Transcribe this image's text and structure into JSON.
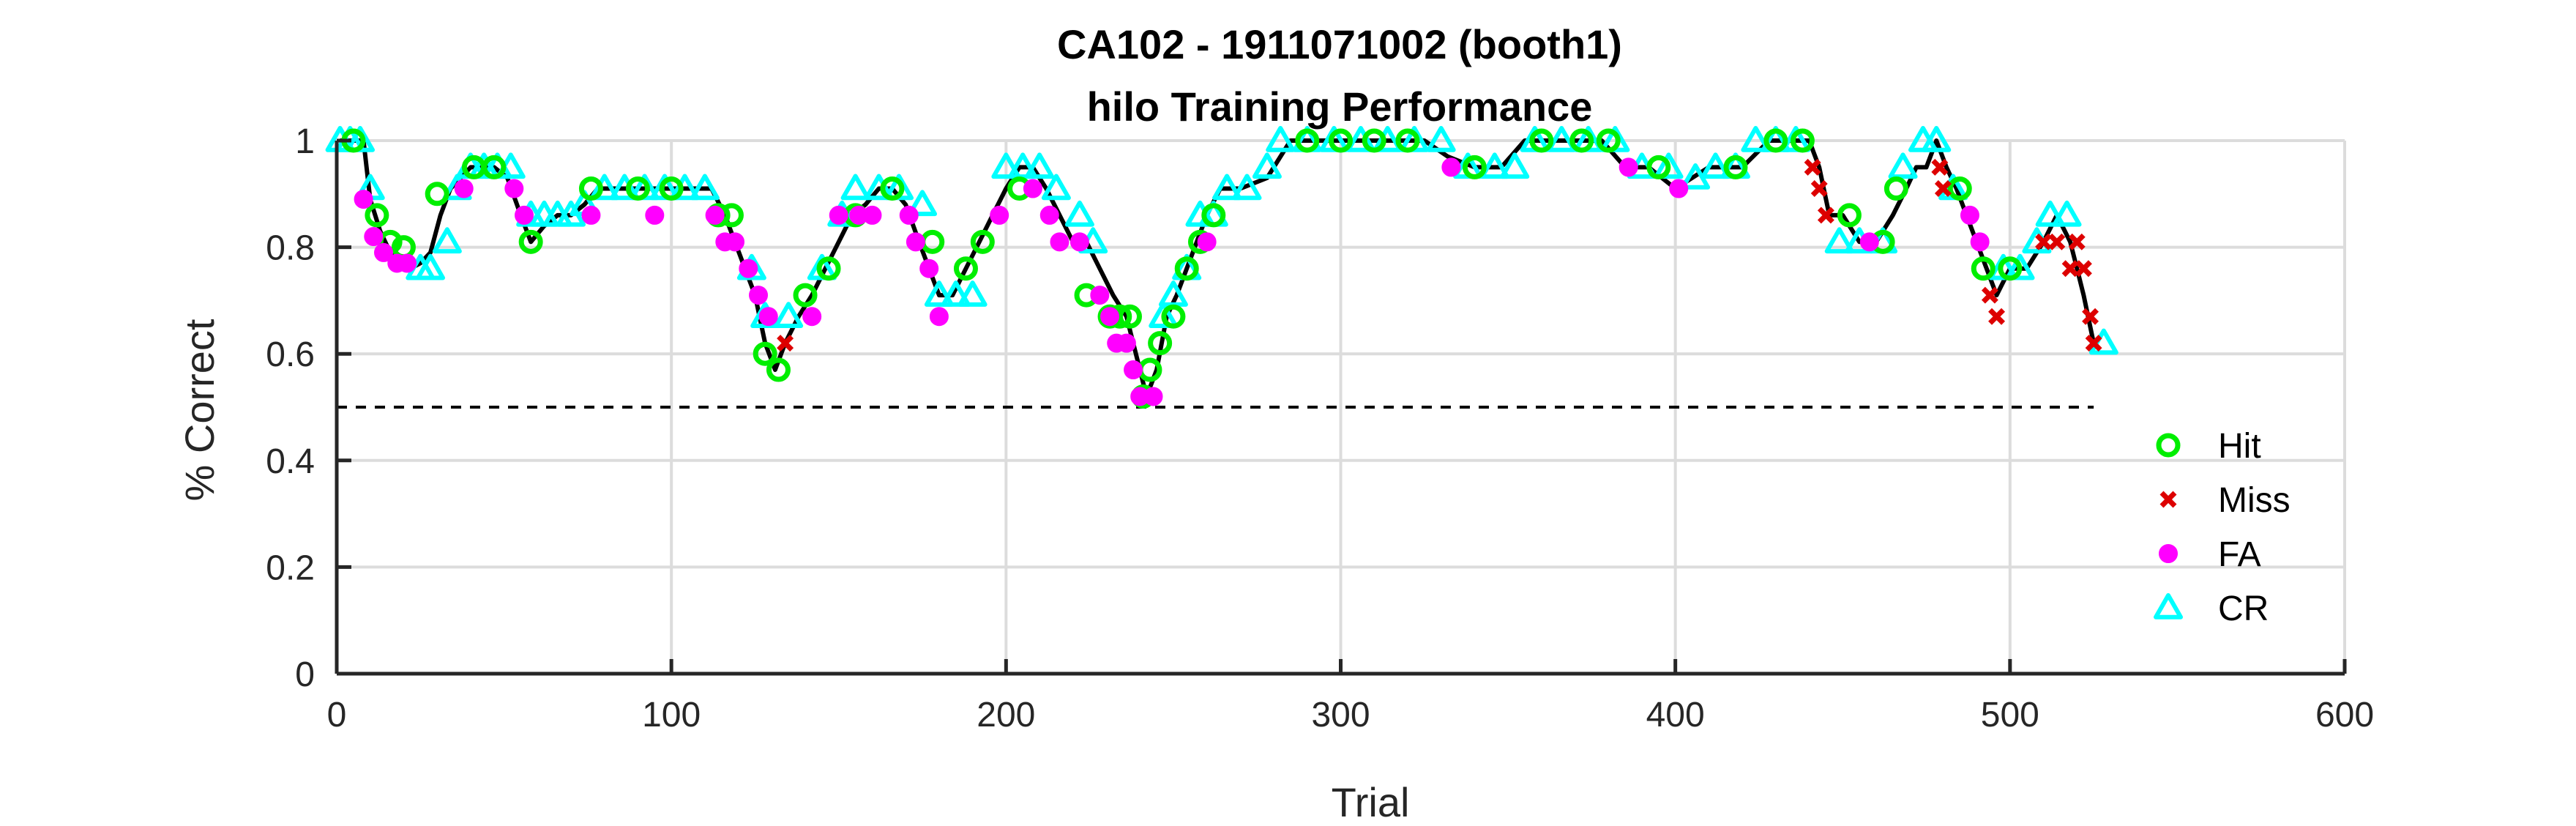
{
  "chart_data": {
    "type": "line",
    "title": "CA102 - 1911071002 (booth1)",
    "subtitle": "hilo Training Performance",
    "xlabel": "Trial",
    "ylabel": "% Correct",
    "xlim": [
      0,
      600
    ],
    "ylim": [
      0,
      1
    ],
    "xticks": [
      "0",
      "100",
      "200",
      "300",
      "400",
      "500",
      "600"
    ],
    "yticks": [
      "0",
      "0.2",
      "0.4",
      "0.6",
      "0.8",
      "1"
    ],
    "grid": true,
    "legend_position": "right",
    "chance_level": 0.5,
    "chance_x": [
      0,
      525
    ],
    "series_colors": {
      "Hit": "#00ee00",
      "Miss": "#dd0000",
      "FA": "#ff00ff",
      "CR": "#00ffff",
      "line": "#000000"
    },
    "performance": {
      "x": [
        1,
        8,
        10,
        13,
        16,
        19,
        22,
        25,
        28,
        31,
        34,
        37,
        40,
        43,
        47,
        51,
        55,
        58,
        62,
        66,
        70,
        74,
        78,
        84,
        90,
        96,
        102,
        108,
        112,
        116,
        119,
        122,
        125,
        128,
        131,
        134,
        138,
        142,
        146,
        150,
        154,
        158,
        162,
        166,
        170,
        174,
        177,
        180,
        184,
        188,
        192,
        196,
        200,
        204,
        208,
        212,
        216,
        220,
        224,
        228,
        232,
        236,
        240,
        242,
        245,
        248,
        251,
        254,
        257,
        260,
        264,
        270,
        278,
        285,
        295,
        305,
        315,
        325,
        332,
        340,
        348,
        355,
        362,
        370,
        378,
        385,
        392,
        400,
        405,
        410,
        415,
        420,
        428,
        435,
        440,
        443,
        446,
        450,
        455,
        460,
        465,
        469,
        472,
        475,
        478,
        481,
        484,
        487,
        490,
        493,
        496,
        500,
        505,
        510,
        514,
        518,
        520,
        522,
        525
      ],
      "y": [
        1.0,
        1.0,
        0.89,
        0.83,
        0.79,
        0.77,
        0.76,
        0.77,
        0.79,
        0.86,
        0.91,
        0.93,
        0.95,
        0.95,
        0.95,
        0.93,
        0.86,
        0.81,
        0.84,
        0.86,
        0.86,
        0.88,
        0.91,
        0.91,
        0.91,
        0.91,
        0.91,
        0.91,
        0.91,
        0.86,
        0.81,
        0.76,
        0.71,
        0.62,
        0.57,
        0.62,
        0.67,
        0.71,
        0.76,
        0.81,
        0.86,
        0.88,
        0.91,
        0.91,
        0.88,
        0.81,
        0.76,
        0.71,
        0.71,
        0.76,
        0.81,
        0.86,
        0.91,
        0.95,
        0.95,
        0.91,
        0.86,
        0.81,
        0.81,
        0.76,
        0.71,
        0.67,
        0.57,
        0.52,
        0.57,
        0.67,
        0.71,
        0.76,
        0.81,
        0.86,
        0.91,
        0.91,
        0.93,
        1.0,
        1.0,
        1.0,
        1.0,
        1.0,
        0.97,
        0.95,
        0.95,
        1.0,
        1.0,
        1.0,
        1.0,
        0.95,
        0.95,
        0.91,
        0.93,
        0.95,
        0.95,
        0.95,
        1.0,
        1.0,
        1.0,
        0.95,
        0.86,
        0.86,
        0.81,
        0.81,
        0.86,
        0.91,
        0.95,
        0.95,
        1.0,
        0.95,
        0.91,
        0.86,
        0.81,
        0.76,
        0.71,
        0.76,
        0.76,
        0.81,
        0.86,
        0.81,
        0.76,
        0.71,
        0.62
      ]
    },
    "series": [
      {
        "name": "Hit",
        "x": [
          5,
          12,
          16,
          20,
          30,
          41,
          47,
          58,
          76,
          90,
          100,
          114,
          118,
          128,
          132,
          140,
          147,
          155,
          166,
          178,
          188,
          193,
          204,
          224,
          231,
          234,
          237,
          241,
          243,
          246,
          250,
          254,
          258,
          262,
          290,
          300,
          310,
          320,
          340,
          360,
          372,
          380,
          395,
          418,
          430,
          438,
          452,
          462,
          466,
          485,
          492,
          500
        ],
        "y": [
          1.0,
          0.86,
          0.81,
          0.8,
          0.9,
          0.95,
          0.95,
          0.81,
          0.91,
          0.91,
          0.91,
          0.86,
          0.86,
          0.6,
          0.57,
          0.71,
          0.76,
          0.86,
          0.91,
          0.81,
          0.76,
          0.81,
          0.91,
          0.71,
          0.67,
          0.67,
          0.67,
          0.52,
          0.57,
          0.62,
          0.67,
          0.76,
          0.81,
          0.86,
          1.0,
          1.0,
          1.0,
          1.0,
          0.95,
          1.0,
          1.0,
          1.0,
          0.95,
          0.95,
          1.0,
          1.0,
          0.86,
          0.81,
          0.91,
          0.91,
          0.76,
          0.76
        ]
      },
      {
        "name": "Miss",
        "x": [
          134,
          441,
          443,
          445,
          479,
          480,
          494,
          496,
          510,
          514,
          518,
          520,
          522,
          524,
          525
        ],
        "y": [
          0.62,
          0.95,
          0.91,
          0.86,
          0.95,
          0.91,
          0.71,
          0.67,
          0.81,
          0.81,
          0.76,
          0.81,
          0.76,
          0.67,
          0.62
        ]
      },
      {
        "name": "FA",
        "x": [
          8,
          11,
          14,
          18,
          21,
          38,
          53,
          56,
          76,
          95,
          113,
          116,
          119,
          123,
          126,
          129,
          142,
          150,
          156,
          160,
          171,
          173,
          177,
          180,
          198,
          208,
          213,
          216,
          222,
          228,
          231,
          233,
          236,
          238,
          240,
          244,
          260,
          333,
          386,
          401,
          458,
          488,
          491
        ],
        "y": [
          0.89,
          0.82,
          0.79,
          0.77,
          0.77,
          0.91,
          0.91,
          0.86,
          0.86,
          0.86,
          0.86,
          0.81,
          0.81,
          0.76,
          0.71,
          0.67,
          0.67,
          0.86,
          0.86,
          0.86,
          0.86,
          0.81,
          0.76,
          0.67,
          0.86,
          0.91,
          0.86,
          0.81,
          0.81,
          0.71,
          0.67,
          0.62,
          0.62,
          0.57,
          0.52,
          0.52,
          0.81,
          0.95,
          0.95,
          0.91,
          0.81,
          0.86,
          0.81
        ]
      },
      {
        "name": "CR",
        "x": [
          1,
          4,
          7,
          10,
          25,
          28,
          33,
          36,
          40,
          44,
          48,
          52,
          58,
          62,
          66,
          70,
          74,
          80,
          86,
          92,
          98,
          104,
          110,
          124,
          128,
          135,
          145,
          151,
          155,
          162,
          168,
          175,
          180,
          185,
          190,
          200,
          205,
          210,
          215,
          222,
          226,
          247,
          250,
          254,
          258,
          262,
          266,
          272,
          278,
          282,
          290,
          298,
          306,
          314,
          322,
          330,
          338,
          346,
          352,
          358,
          366,
          374,
          382,
          390,
          398,
          406,
          412,
          418,
          424,
          430,
          436,
          449,
          455,
          462,
          468,
          474,
          478,
          483,
          498,
          503,
          508,
          512,
          517,
          528
        ],
        "y": [
          1.0,
          1.0,
          1.0,
          0.91,
          0.76,
          0.76,
          0.81,
          0.91,
          0.95,
          0.95,
          0.95,
          0.95,
          0.86,
          0.86,
          0.86,
          0.86,
          0.88,
          0.91,
          0.91,
          0.91,
          0.91,
          0.91,
          0.91,
          0.76,
          0.67,
          0.67,
          0.76,
          0.86,
          0.91,
          0.91,
          0.91,
          0.88,
          0.71,
          0.71,
          0.71,
          0.95,
          0.95,
          0.95,
          0.91,
          0.86,
          0.81,
          0.67,
          0.71,
          0.76,
          0.86,
          0.86,
          0.91,
          0.91,
          0.95,
          1.0,
          1.0,
          1.0,
          1.0,
          1.0,
          1.0,
          1.0,
          0.95,
          0.95,
          0.95,
          1.0,
          1.0,
          1.0,
          1.0,
          0.95,
          0.95,
          0.93,
          0.95,
          0.95,
          1.0,
          1.0,
          1.0,
          0.81,
          0.81,
          0.81,
          0.95,
          1.0,
          1.0,
          0.91,
          0.76,
          0.76,
          0.81,
          0.86,
          0.86,
          0.62
        ]
      }
    ]
  }
}
